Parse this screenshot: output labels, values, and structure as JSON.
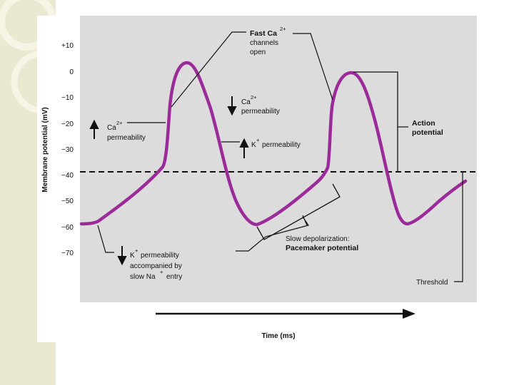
{
  "colors": {
    "plot_bg": "#dcdcdc",
    "curve": "#9c2b9a",
    "slide_bg": "#e9e6cf",
    "ink": "#111111"
  },
  "axis": {
    "y_title": "Membrane potential (mV)",
    "x_title": "Time (ms)",
    "y_ticks": [
      "+10",
      "0",
      "−10",
      "−20",
      "−30",
      "−40",
      "−50",
      "−60",
      "−70"
    ]
  },
  "labels": {
    "fast_ca_1": "Fast Ca",
    "fast_ca_sup": "2+",
    "fast_ca_2": "channels",
    "fast_ca_3": "open",
    "ca_perm_up_1": "Ca",
    "ca_perm_up_sup": "2+",
    "ca_perm_up_2": "permeability",
    "ca_perm_down_1": "Ca",
    "ca_perm_down_sup": "2+",
    "ca_perm_down_2": "permeability",
    "k_perm_up_1": "K",
    "k_perm_up_sup": "+",
    "k_perm_up_2": "permeability",
    "k_perm_down_1": "K",
    "k_perm_down_sup": "+",
    "k_perm_down_2": "permeability",
    "k_perm_down_3": "accompanied by",
    "k_perm_down_4": "slow Na",
    "k_perm_down_sup2": "+",
    "k_perm_down_5": "entry",
    "action_1": "Action",
    "action_2": "potential",
    "slow_dep_1": "Slow depolarization:",
    "slow_dep_2": "Pacemaker potential",
    "threshold": "Threshold"
  }
}
